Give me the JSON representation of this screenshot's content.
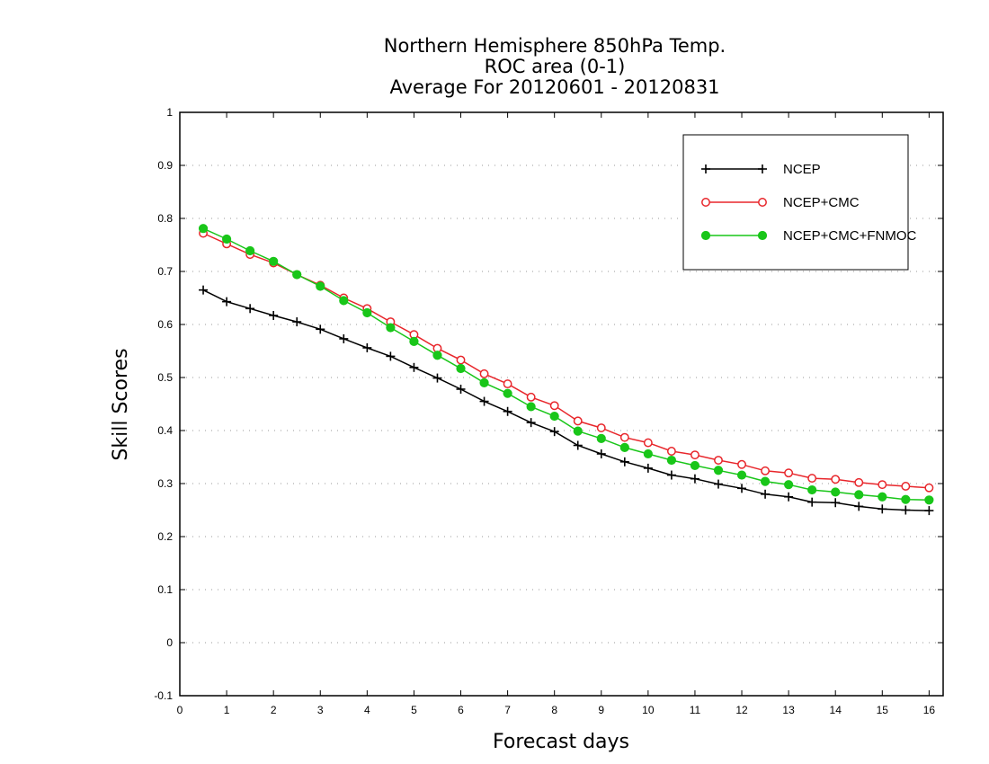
{
  "chart_data": {
    "type": "line",
    "title_lines": [
      "Northern Hemisphere 850hPa Temp.",
      "ROC area (0-1)",
      "Average For 20120601 - 20120831"
    ],
    "xlabel": "Forecast days",
    "ylabel": "Skill Scores",
    "xlim": [
      0,
      16.3
    ],
    "ylim": [
      -0.1,
      1
    ],
    "xticks": [
      0,
      1,
      2,
      3,
      4,
      5,
      6,
      7,
      8,
      9,
      10,
      11,
      12,
      13,
      14,
      15,
      16
    ],
    "yticks": [
      -0.1,
      0,
      0.1,
      0.2,
      0.3,
      0.4,
      0.5,
      0.6,
      0.7,
      0.8,
      0.9,
      1
    ],
    "ytick_labels": [
      "-0.1",
      "0",
      "0.1",
      "0.2",
      "0.3",
      "0.4",
      "0.5",
      "0.6",
      "0.7",
      "0.8",
      "0.9",
      "1"
    ],
    "grid": "horizontal dotted",
    "legend_position": "top-right",
    "x": [
      0.5,
      1,
      1.5,
      2,
      2.5,
      3,
      3.5,
      4,
      4.5,
      5,
      5.5,
      6,
      6.5,
      7,
      7.5,
      8,
      8.5,
      9,
      9.5,
      10,
      10.5,
      11,
      11.5,
      12,
      12.5,
      13,
      13.5,
      14,
      14.5,
      15,
      15.5,
      16
    ],
    "series": [
      {
        "name": "NCEP",
        "color": "#000000",
        "marker": "plus",
        "values": [
          0.665,
          0.643,
          0.63,
          0.617,
          0.605,
          0.591,
          0.573,
          0.556,
          0.54,
          0.519,
          0.499,
          0.478,
          0.455,
          0.436,
          0.415,
          0.398,
          0.372,
          0.356,
          0.341,
          0.329,
          0.316,
          0.309,
          0.299,
          0.291,
          0.28,
          0.275,
          0.265,
          0.264,
          0.257,
          0.252,
          0.25,
          0.249
        ]
      },
      {
        "name": "NCEP+CMC",
        "color": "#e8262b",
        "marker": "open-circle",
        "values": [
          0.772,
          0.752,
          0.732,
          0.716,
          0.694,
          0.674,
          0.65,
          0.63,
          0.605,
          0.581,
          0.555,
          0.533,
          0.507,
          0.488,
          0.463,
          0.447,
          0.418,
          0.405,
          0.387,
          0.377,
          0.361,
          0.354,
          0.344,
          0.336,
          0.324,
          0.32,
          0.31,
          0.308,
          0.302,
          0.298,
          0.295,
          0.292
        ]
      },
      {
        "name": "NCEP+CMC+FNMOC",
        "color": "#19c619",
        "marker": "filled-circle",
        "values": [
          0.781,
          0.761,
          0.739,
          0.719,
          0.694,
          0.672,
          0.645,
          0.622,
          0.594,
          0.568,
          0.542,
          0.517,
          0.49,
          0.47,
          0.445,
          0.427,
          0.399,
          0.385,
          0.368,
          0.356,
          0.344,
          0.334,
          0.325,
          0.316,
          0.304,
          0.298,
          0.288,
          0.284,
          0.279,
          0.275,
          0.27,
          0.269
        ]
      }
    ]
  }
}
